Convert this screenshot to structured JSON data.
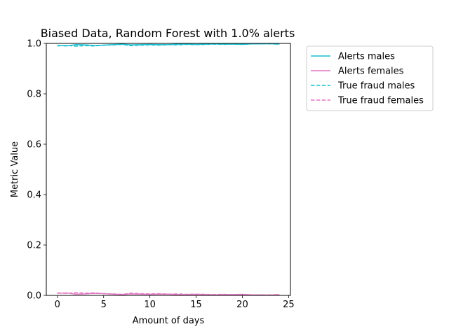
{
  "chart_data": {
    "type": "line",
    "title": "Biased Data, Random Forest with 1.0% alerts",
    "xlabel": "Amount of days",
    "ylabel": "Metric Value",
    "xlim": [
      -1.2,
      25.2
    ],
    "ylim": [
      0.0,
      1.0
    ],
    "xticks": [
      0,
      5,
      10,
      15,
      20,
      25
    ],
    "yticks": [
      0.0,
      0.2,
      0.4,
      0.6,
      0.8,
      1.0
    ],
    "xtick_labels": [
      "0",
      "5",
      "10",
      "15",
      "20",
      "25"
    ],
    "ytick_labels": [
      "0.0",
      "0.2",
      "0.4",
      "0.6",
      "0.8",
      "1.0"
    ],
    "grid": false,
    "legend_position": "outside-top-right",
    "x": [
      0,
      1,
      2,
      3,
      4,
      5,
      6,
      7,
      8,
      9,
      10,
      11,
      12,
      13,
      14,
      15,
      16,
      17,
      18,
      19,
      20,
      21,
      22,
      23,
      24
    ],
    "series": [
      {
        "name": "Alerts males",
        "color": "#17becf",
        "style": "solid",
        "values": [
          0.992,
          0.99,
          0.995,
          0.994,
          0.992,
          0.993,
          0.995,
          0.997,
          0.994,
          0.995,
          0.996,
          0.995,
          0.995,
          0.997,
          0.997,
          0.996,
          0.997,
          0.998,
          0.997,
          0.997,
          0.996,
          0.998,
          0.998,
          0.999,
          0.997
        ]
      },
      {
        "name": "Alerts females",
        "color": "#e377c2",
        "style": "solid",
        "values": [
          0.008,
          0.01,
          0.005,
          0.006,
          0.008,
          0.007,
          0.005,
          0.003,
          0.006,
          0.005,
          0.004,
          0.005,
          0.005,
          0.003,
          0.003,
          0.004,
          0.003,
          0.002,
          0.003,
          0.003,
          0.004,
          0.002,
          0.002,
          0.001,
          0.003
        ]
      },
      {
        "name": "True fraud males",
        "color": "#17becf",
        "style": "dashed",
        "values": [
          0.99,
          0.992,
          0.989,
          0.991,
          0.99,
          0.993,
          0.994,
          0.996,
          0.991,
          0.993,
          0.994,
          0.993,
          0.995,
          0.994,
          0.996,
          0.995,
          0.996,
          0.997,
          0.996,
          0.998,
          0.997,
          0.998,
          0.999,
          0.998,
          0.997
        ]
      },
      {
        "name": "True fraud females",
        "color": "#e377c2",
        "style": "dashed",
        "values": [
          0.01,
          0.008,
          0.011,
          0.009,
          0.01,
          0.007,
          0.006,
          0.004,
          0.009,
          0.007,
          0.006,
          0.007,
          0.005,
          0.006,
          0.004,
          0.005,
          0.004,
          0.003,
          0.004,
          0.002,
          0.003,
          0.002,
          0.001,
          0.002,
          0.003
        ]
      }
    ]
  }
}
